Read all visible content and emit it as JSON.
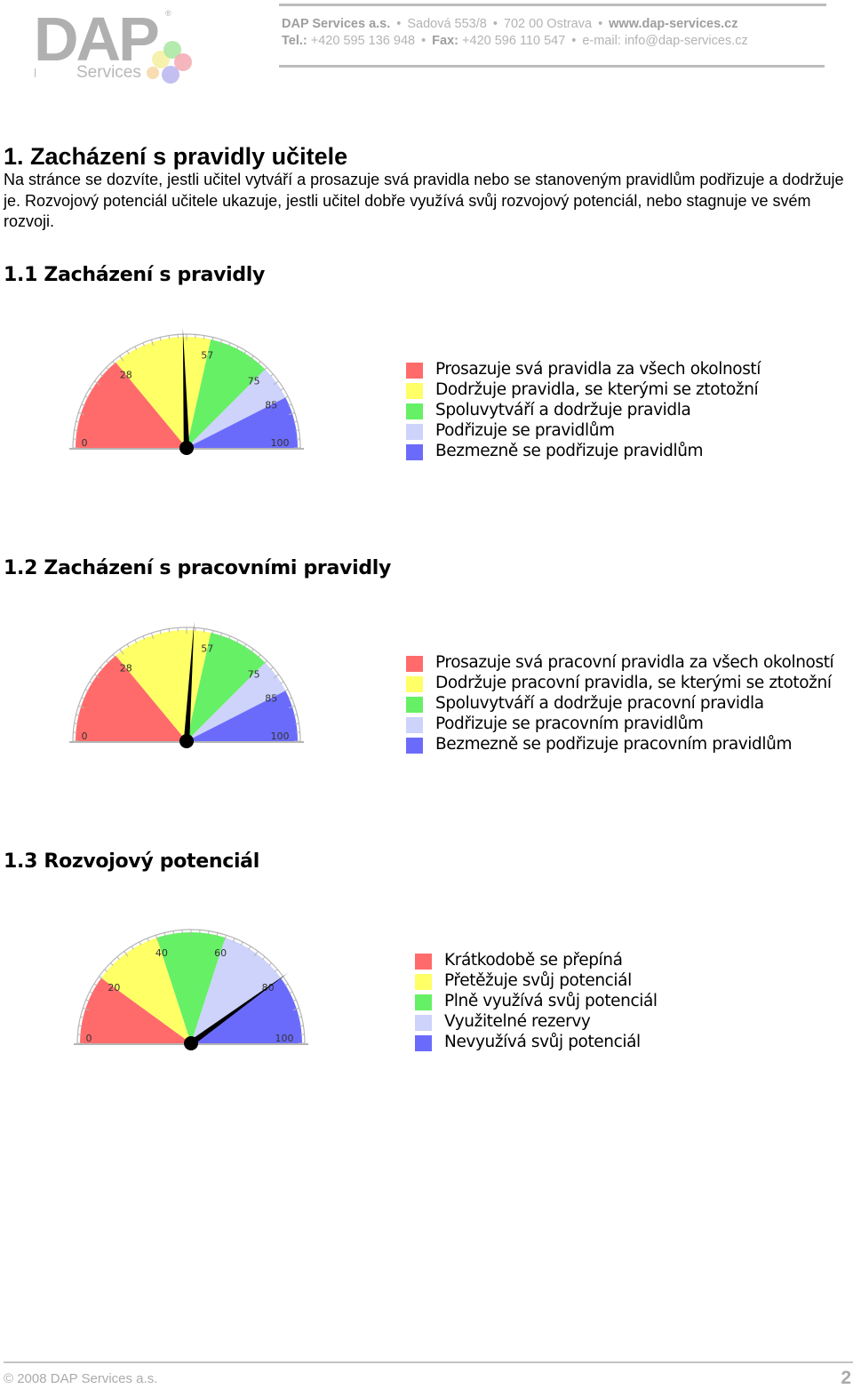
{
  "header": {
    "company": "DAP Services a.s.",
    "address_street": "Sadová 553/8",
    "address_city": "702 00 Ostrava",
    "website": "www.dap-services.cz",
    "tel_label": "Tel.:",
    "tel": "+420 595 136 948",
    "fax_label": "Fax:",
    "fax": "+420 596 110 547",
    "email": "e-mail: info@dap-services.cz",
    "logo_text": "DAP",
    "logo_subtext": "Services",
    "logo_mark": "®"
  },
  "main": {
    "title": "1. Zacházení s pravidly učitele",
    "intro": "Na stránce se dozvíte, jestli učitel vytváří a prosazuje svá pravidla nebo se stanoveným pravidlům podřizuje a dodržuje je. Rozvojový potenciál učitele ukazuje, jestli učitel dobře využívá svůj rozvojový potenciál, nebo stagnuje ve svém rozvoji."
  },
  "sections": [
    {
      "title": "1.1 Zacházení s pravidly",
      "gauge": {
        "min": 0,
        "max": 100,
        "value": 49,
        "ticks": [
          "0",
          "28",
          "57",
          "75",
          "85",
          "100"
        ],
        "bounds": [
          0,
          28,
          57,
          75,
          85,
          100
        ]
      },
      "legend": [
        "Prosazuje svá pravidla za všech okolností",
        "Dodržuje pravidla, se kterými se ztotožní",
        "Spoluvytváří a dodržuje pravidla",
        "Podřizuje se pravidlům",
        "Bezmezně se podřizuje pravidlům"
      ]
    },
    {
      "title": "1.2 Zacházení s pracovními pravidly",
      "gauge": {
        "min": 0,
        "max": 100,
        "value": 52,
        "ticks": [
          "0",
          "28",
          "57",
          "75",
          "85",
          "100"
        ],
        "bounds": [
          0,
          28,
          57,
          75,
          85,
          100
        ]
      },
      "legend": [
        "Prosazuje svá pracovní pravidla za všech okolností",
        "Dodržuje pracovní pravidla, se kterými se ztotožní",
        "Spoluvytváří a dodržuje pracovní pravidla",
        "Podřizuje se pracovním pravidlům",
        "Bezmezně se podřizuje pracovním pravidlům"
      ]
    },
    {
      "title": "1.3 Rozvojový potenciál",
      "gauge": {
        "min": 0,
        "max": 100,
        "value": 80,
        "ticks": [
          "0",
          "20",
          "40",
          "60",
          "80",
          "100"
        ],
        "bounds": [
          0,
          20,
          40,
          60,
          80,
          100
        ]
      },
      "legend": [
        "Krátkodobě se přepíná",
        "Přetěžuje svůj potenciál",
        "Plně využívá svůj potenciál",
        "Využitelné rezervy",
        "Nevyužívá svůj potenciál"
      ]
    }
  ],
  "colors": {
    "red": "#ff6b6b",
    "yellow": "#ffff66",
    "green": "#66f066",
    "light_blue": "#cdd3fb",
    "blue": "#6b6bfb",
    "needle": "#000000",
    "tick": "#b5b5b5"
  },
  "footer": {
    "copyright": "© 2008 DAP Services a.s.",
    "page": "2"
  }
}
